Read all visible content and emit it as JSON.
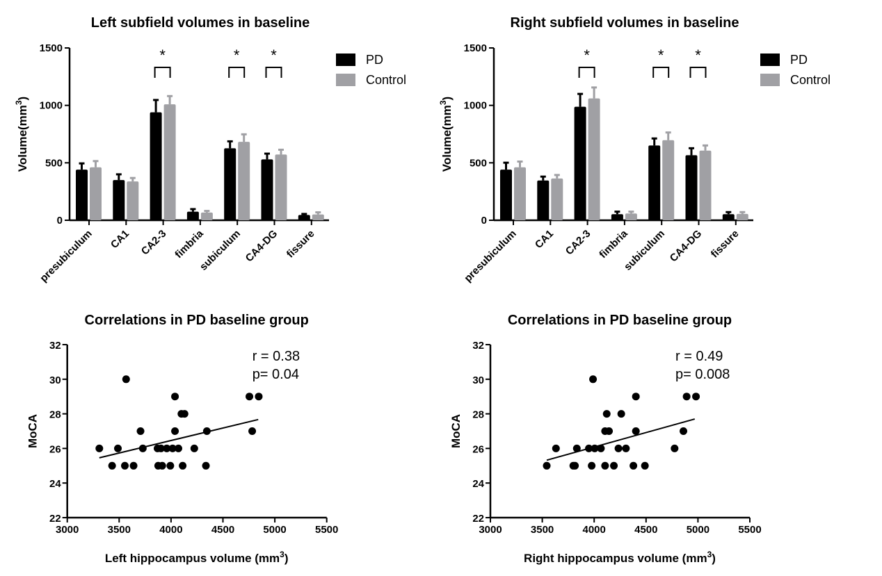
{
  "colors": {
    "pd": "#000000",
    "control": "#a0a0a4"
  },
  "chart_data": [
    {
      "type": "bar",
      "title": "Left subfield volumes in baseline",
      "ylabel": "Volume(mm3)",
      "ylabel_main": "Volume(mm",
      "ylabel_sup": "3",
      "ylabel_end": ")",
      "ylim": [
        0,
        1500
      ],
      "yticks": [
        0,
        500,
        1000,
        1500
      ],
      "categories": [
        "presubiculum",
        "CA1",
        "CA2-3",
        "fimbria",
        "subiculum",
        "CA4-DG",
        "fissure"
      ],
      "series": [
        {
          "name": "PD",
          "values": [
            441,
            350,
            940,
            75,
            627,
            530,
            46
          ],
          "error_upper": [
            495,
            400,
            1047,
            97,
            687,
            580,
            55
          ]
        },
        {
          "name": "Control",
          "values": [
            461,
            338,
            1009,
            67,
            683,
            572,
            51
          ],
          "error_upper": [
            515,
            368,
            1081,
            81,
            748,
            614,
            69
          ]
        }
      ],
      "significant": [
        "CA2-3",
        "subiculum",
        "CA4-DG"
      ],
      "significance_mark": "*",
      "legend": "top-right"
    },
    {
      "type": "bar",
      "title": "Right subfield volumes in baseline",
      "ylabel": "Volume(mm3)",
      "ylabel_main": "Volume(mm",
      "ylabel_sup": "3",
      "ylabel_end": ")",
      "ylim": [
        0,
        1500
      ],
      "yticks": [
        0,
        500,
        1000,
        1500
      ],
      "categories": [
        "presubiculum",
        "CA1",
        "CA2-3",
        "fimbria",
        "subiculum",
        "CA4-DG",
        "fissure"
      ],
      "series": [
        {
          "name": "PD",
          "values": [
            441,
            346,
            988,
            53,
            651,
            566,
            53
          ],
          "error_upper": [
            501,
            380,
            1100,
            75,
            712,
            627,
            71
          ]
        },
        {
          "name": "Control",
          "values": [
            461,
            364,
            1061,
            59,
            697,
            606,
            55
          ],
          "error_upper": [
            511,
            394,
            1156,
            75,
            764,
            651,
            71
          ]
        }
      ],
      "significant": [
        "CA2-3",
        "subiculum",
        "CA4-DG"
      ],
      "significance_mark": "*",
      "legend": "top-right"
    },
    {
      "type": "scatter",
      "title": "Correlations in PD baseline group",
      "xlabel": "Left hippocampus volume (mm3)",
      "xlabel_main": "Left hippocampus volume (mm",
      "xlabel_sup": "3",
      "xlabel_end": ")",
      "ylabel": "MoCA",
      "xlim": [
        3000,
        5500
      ],
      "ylim": [
        22,
        32
      ],
      "xticks": [
        3000,
        3500,
        4000,
        4500,
        5000,
        5500
      ],
      "yticks": [
        22,
        24,
        26,
        28,
        30,
        32
      ],
      "annotations": [
        "r = 0.38",
        "p= 0.04"
      ],
      "points": [
        [
          3309,
          26
        ],
        [
          3488,
          26
        ],
        [
          3728,
          26
        ],
        [
          3870,
          26
        ],
        [
          3903,
          26
        ],
        [
          3959,
          26
        ],
        [
          4015,
          26
        ],
        [
          4071,
          26
        ],
        [
          4224,
          26
        ],
        [
          3432,
          25
        ],
        [
          3555,
          25
        ],
        [
          3639,
          25
        ],
        [
          3876,
          25
        ],
        [
          3915,
          25
        ],
        [
          3993,
          25
        ],
        [
          4112,
          25
        ],
        [
          4336,
          25
        ],
        [
          3706,
          27
        ],
        [
          4038,
          27
        ],
        [
          4345,
          27
        ],
        [
          4782,
          27
        ],
        [
          4100,
          28
        ],
        [
          4130,
          28
        ],
        [
          4038,
          29
        ],
        [
          4755,
          29
        ],
        [
          4845,
          29
        ],
        [
          3567,
          30
        ]
      ],
      "fit_line": [
        [
          3309,
          25.46
        ],
        [
          4840,
          27.67
        ]
      ]
    },
    {
      "type": "scatter",
      "title": "Correlations in PD baseline group",
      "xlabel": "Right hippocampus volume (mm3)",
      "xlabel_main": "Right hippocampus volume (mm",
      "xlabel_sup": "3",
      "xlabel_end": ")",
      "ylabel": "MoCA",
      "xlim": [
        3000,
        5500
      ],
      "ylim": [
        22,
        32
      ],
      "xticks": [
        3000,
        3500,
        4000,
        4500,
        5000,
        5500
      ],
      "yticks": [
        22,
        24,
        26,
        28,
        30,
        32
      ],
      "annotations": [
        "r = 0.49",
        "p= 0.008"
      ],
      "points": [
        [
          3543,
          25
        ],
        [
          3799,
          25
        ],
        [
          3815,
          25
        ],
        [
          3976,
          25
        ],
        [
          4105,
          25
        ],
        [
          4190,
          25
        ],
        [
          4378,
          25
        ],
        [
          4489,
          25
        ],
        [
          3632,
          26
        ],
        [
          3833,
          26
        ],
        [
          3949,
          26
        ],
        [
          4005,
          26
        ],
        [
          4065,
          26
        ],
        [
          4234,
          26
        ],
        [
          4306,
          26
        ],
        [
          4775,
          26
        ],
        [
          4105,
          27
        ],
        [
          4143,
          27
        ],
        [
          4402,
          27
        ],
        [
          4860,
          27
        ],
        [
          4121,
          28
        ],
        [
          4261,
          28
        ],
        [
          4402,
          29
        ],
        [
          4891,
          29
        ],
        [
          4981,
          29
        ],
        [
          3989,
          30
        ]
      ],
      "fit_line": [
        [
          3543,
          25.32
        ],
        [
          4969,
          27.7
        ]
      ]
    }
  ]
}
